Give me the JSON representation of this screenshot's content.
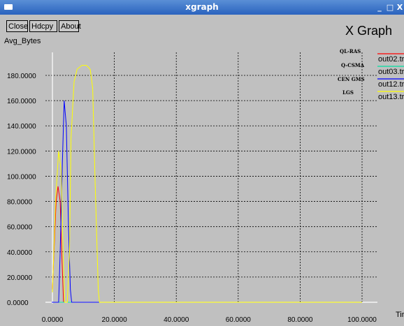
{
  "window": {
    "title": "xgraph",
    "icon": "window-menu-icon",
    "controls": [
      "_",
      "□",
      "X"
    ]
  },
  "toolbar": {
    "close_label": "Close",
    "hdcpy_label": "Hdcpy",
    "about_label": "About"
  },
  "graph_title": "X Graph",
  "colors": {
    "background": "#c0c0c0",
    "axis": "#ffffff",
    "grid": "#000000",
    "out02": "#ff0000",
    "out03": "#00e0a0",
    "out12": "#0000ff",
    "out13": "#ffff00"
  },
  "chart_data": {
    "type": "line",
    "ylabel": "Avg_Bytes",
    "xlabel": "Tir",
    "xlim": [
      -5,
      105
    ],
    "ylim": [
      0,
      200
    ],
    "x_ticks": [
      "0.0000",
      "20.0000",
      "40.0000",
      "60.0000",
      "80.0000",
      "100.0000"
    ],
    "x_tick_values": [
      0,
      20,
      40,
      60,
      80,
      100
    ],
    "y_ticks": [
      "0.0000",
      "20.0000",
      "40.0000",
      "60.0000",
      "80.0000",
      "100.0000",
      "120.0000",
      "140.0000",
      "160.0000",
      "180.0000"
    ],
    "y_tick_values": [
      0,
      20,
      40,
      60,
      80,
      100,
      120,
      140,
      160,
      180
    ],
    "grid": true,
    "legend_placement": "top-right",
    "annotations": [
      "QL-RAS",
      "Q-CSMA",
      "CEN GMS",
      "LGS"
    ],
    "series": [
      {
        "name": "out02.tr",
        "color_key": "out02",
        "x": [
          0,
          0.5,
          1.2,
          1.8,
          2.5,
          3.0,
          3.6,
          4.0,
          100
        ],
        "y": [
          10,
          40,
          80,
          92,
          80,
          40,
          0,
          0,
          0
        ]
      },
      {
        "name": "out03.tr",
        "color_key": "out03",
        "x": [
          0,
          100
        ],
        "y": [
          0,
          0
        ]
      },
      {
        "name": "out12.tr",
        "color_key": "out12",
        "x": [
          -0.2,
          2.0,
          2.5,
          3.2,
          3.8,
          4.5,
          5.2,
          5.8,
          6.2,
          100
        ],
        "y": [
          0,
          0,
          40,
          110,
          160,
          140,
          60,
          10,
          0,
          0
        ]
      },
      {
        "name": "out13.tr",
        "color_key": "out13",
        "x": [
          0,
          1.0,
          2.0,
          2.8,
          3.5,
          4.0,
          4.8,
          5.5,
          6.0,
          7.0,
          8.0,
          9.5,
          11.0,
          12.2,
          13.0,
          13.8,
          14.8,
          15.2,
          100
        ],
        "y": [
          8,
          80,
          120,
          105,
          35,
          0,
          0,
          40,
          130,
          175,
          185,
          188,
          188,
          185,
          170,
          95,
          10,
          0,
          0
        ]
      }
    ]
  }
}
